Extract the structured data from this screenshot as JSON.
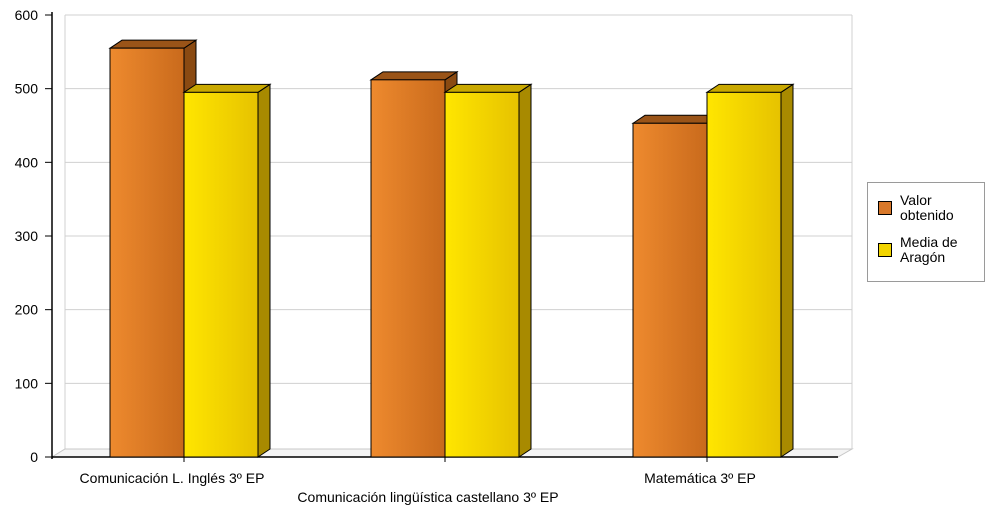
{
  "chart_data": {
    "type": "bar",
    "categories": [
      "Comunicación L. Inglés 3º EP",
      "Comunicación lingüística castellano 3º EP",
      "Matemática 3º EP"
    ],
    "series": [
      {
        "name": "Valor obtenido",
        "values": [
          555,
          512,
          453
        ],
        "color": "#e8802a"
      },
      {
        "name": "Media de Aragón",
        "values": [
          495,
          495,
          495
        ],
        "color": "#f2d400"
      }
    ],
    "ylim": [
      0,
      600
    ],
    "yticks": [
      "0",
      "100",
      "200",
      "300",
      "400",
      "500",
      "600"
    ],
    "grid": true,
    "legend_position": "right",
    "title": "",
    "xlabel": "",
    "ylabel": ""
  },
  "legend": {
    "items": [
      {
        "label_line1": "Valor",
        "label_line2": "obtenido"
      },
      {
        "label_line1": "Media de",
        "label_line2": "Aragón"
      }
    ]
  }
}
